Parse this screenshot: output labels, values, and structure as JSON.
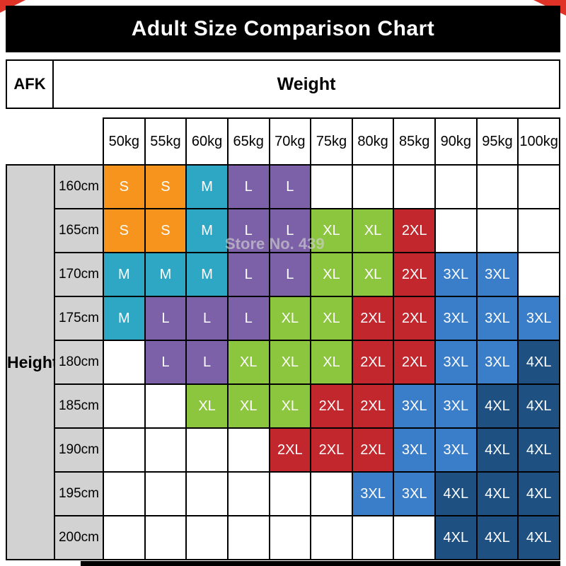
{
  "header": {
    "afk": "AFK"
  },
  "watermark": "Store No. 439",
  "chart_data": {
    "type": "table",
    "title": "Adult Size Comparison Chart",
    "x_header": "Weight",
    "y_header": "Height",
    "columns": [
      "50kg",
      "55kg",
      "60kg",
      "65kg",
      "70kg",
      "75kg",
      "80kg",
      "85kg",
      "90kg",
      "95kg",
      "100kg"
    ],
    "rows": [
      "160cm",
      "165cm",
      "170cm",
      "175cm",
      "180cm",
      "185cm",
      "190cm",
      "195cm",
      "200cm"
    ],
    "matrix": [
      [
        "S",
        "S",
        "M",
        "L",
        "L",
        "",
        "",
        "",
        "",
        "",
        ""
      ],
      [
        "S",
        "S",
        "M",
        "L",
        "L",
        "XL",
        "XL",
        "2XL",
        "",
        "",
        ""
      ],
      [
        "M",
        "M",
        "M",
        "L",
        "L",
        "XL",
        "XL",
        "2XL",
        "3XL",
        "3XL",
        ""
      ],
      [
        "M",
        "L",
        "L",
        "L",
        "XL",
        "XL",
        "2XL",
        "2XL",
        "3XL",
        "3XL",
        "3XL"
      ],
      [
        "",
        "L",
        "L",
        "XL",
        "XL",
        "XL",
        "2XL",
        "2XL",
        "3XL",
        "3XL",
        "4XL"
      ],
      [
        "",
        "",
        "XL",
        "XL",
        "XL",
        "2XL",
        "2XL",
        "3XL",
        "3XL",
        "4XL",
        "4XL"
      ],
      [
        "",
        "",
        "",
        "",
        "2XL",
        "2XL",
        "2XL",
        "3XL",
        "3XL",
        "4XL",
        "4XL"
      ],
      [
        "",
        "",
        "",
        "",
        "",
        "",
        "3XL",
        "3XL",
        "4XL",
        "4XL",
        "4XL"
      ],
      [
        "",
        "",
        "",
        "",
        "",
        "",
        "",
        "",
        "4XL",
        "4XL",
        "4XL"
      ]
    ],
    "size_colors": {
      "S": "#F7941E",
      "M": "#2EA7C4",
      "L": "#7C61A9",
      "XL": "#8CC63F",
      "2XL": "#C1272D",
      "3XL": "#3A7DC9",
      "4XL": "#1E5181"
    },
    "grid": true,
    "legend_position": "none"
  }
}
